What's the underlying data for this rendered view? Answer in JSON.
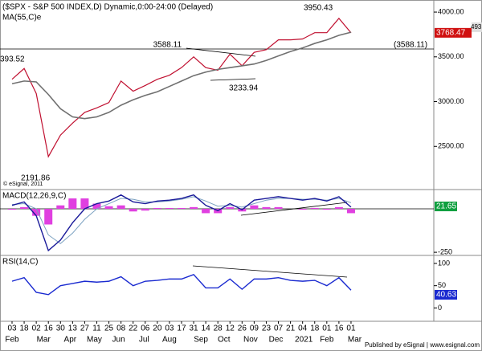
{
  "chart_data": {
    "type": "line",
    "title": "($SPX - S&P 500 INDEX,D) Dynamic,0:00-24:00 (Delayed)",
    "ma_label": "MA(55,C)e",
    "macd_label": "MACD(12,26,9,C)",
    "rsi_label": "RSI(14,C)",
    "copyright": "© eSignal, 2011",
    "footer": "Published by eSignal | www.esignal.com",
    "categories": [
      "03",
      "18",
      "02",
      "16",
      "30",
      "13",
      "27",
      "11",
      "25",
      "08",
      "22",
      "06",
      "20",
      "03",
      "17",
      "31",
      "14",
      "28",
      "12",
      "26",
      "09",
      "23",
      "07",
      "21",
      "04",
      "18",
      "01",
      "16",
      "01"
    ],
    "months": [
      "Feb",
      "Mar",
      "Apr",
      "May",
      "Jun",
      "Jul",
      "Aug",
      "Sep",
      "Oct",
      "Nov",
      "Dec",
      "2021",
      "Feb",
      "Mar"
    ],
    "ylim": [
      2018,
      4135
    ],
    "yticks": [
      {
        "value": 2500,
        "label": "2500.00"
      },
      {
        "value": 3000,
        "label": "3000.00"
      },
      {
        "value": 3500,
        "label": "3500.00"
      },
      {
        "value": 4000,
        "label": "4000.00"
      }
    ],
    "series": [
      {
        "name": "SPX",
        "color": "#c01030",
        "values": [
          3250,
          3370,
          3090,
          2386,
          2626,
          2760,
          2880,
          2930,
          2990,
          3230,
          3117,
          3180,
          3250,
          3295,
          3380,
          3500,
          3380,
          3350,
          3530,
          3400,
          3550,
          3580,
          3690,
          3690,
          3700,
          3770,
          3770,
          3930,
          3768
        ]
      },
      {
        "name": "MA(55,C)e",
        "color": "#707070",
        "values": [
          3200,
          3230,
          3220,
          3080,
          2920,
          2830,
          2810,
          2830,
          2880,
          2960,
          3020,
          3070,
          3110,
          3170,
          3230,
          3290,
          3330,
          3360,
          3380,
          3400,
          3420,
          3460,
          3510,
          3560,
          3600,
          3650,
          3690,
          3740,
          3775
        ]
      }
    ],
    "annotations": [
      {
        "label": "3950.43",
        "value": 3950.43
      },
      {
        "label": "3588.11",
        "value": 3588.11
      },
      {
        "label": "(3588.11)",
        "value": 3588.11
      },
      {
        "label": "3233.94",
        "value": 3233.94
      },
      {
        "label": "2191.86",
        "value": 2191.86
      },
      {
        "label": "393.52",
        "value": 393.52
      }
    ],
    "last_price": {
      "label": "3768.47",
      "value": 3768.47
    },
    "last_partial": "493",
    "macd": {
      "ylim": [
        -268,
        111
      ],
      "yticks": [
        {
          "value": -250,
          "label": "-250"
        }
      ],
      "last": "21.65",
      "macd_values": [
        20,
        40,
        -40,
        -240,
        -180,
        -80,
        0,
        30,
        45,
        80,
        40,
        30,
        45,
        50,
        60,
        80,
        20,
        -10,
        30,
        -5,
        50,
        60,
        70,
        60,
        50,
        60,
        45,
        70,
        10
      ],
      "signal_values": [
        25,
        30,
        0,
        -150,
        -200,
        -140,
        -60,
        0,
        30,
        60,
        55,
        40,
        40,
        45,
        55,
        70,
        45,
        15,
        20,
        10,
        30,
        50,
        60,
        60,
        55,
        55,
        50,
        60,
        35
      ],
      "hist_values": [
        -5,
        10,
        -40,
        -90,
        20,
        60,
        60,
        30,
        15,
        20,
        -15,
        -10,
        5,
        5,
        5,
        10,
        -25,
        -25,
        10,
        -15,
        20,
        10,
        10,
        0,
        -5,
        5,
        -5,
        10,
        -25
      ],
      "colors": {
        "macd": "#1a1a9a",
        "signal": "#7aa0c0",
        "hist": "#e040e0"
      }
    },
    "rsi": {
      "ylim": [
        -30,
        118
      ],
      "yticks": [
        0,
        50,
        100
      ],
      "last": "40.63",
      "color": "#1a2ad0",
      "values": [
        60,
        68,
        35,
        30,
        50,
        55,
        60,
        58,
        60,
        70,
        50,
        60,
        62,
        65,
        65,
        75,
        45,
        45,
        65,
        42,
        65,
        65,
        68,
        62,
        60,
        62,
        50,
        68,
        40
      ]
    }
  }
}
